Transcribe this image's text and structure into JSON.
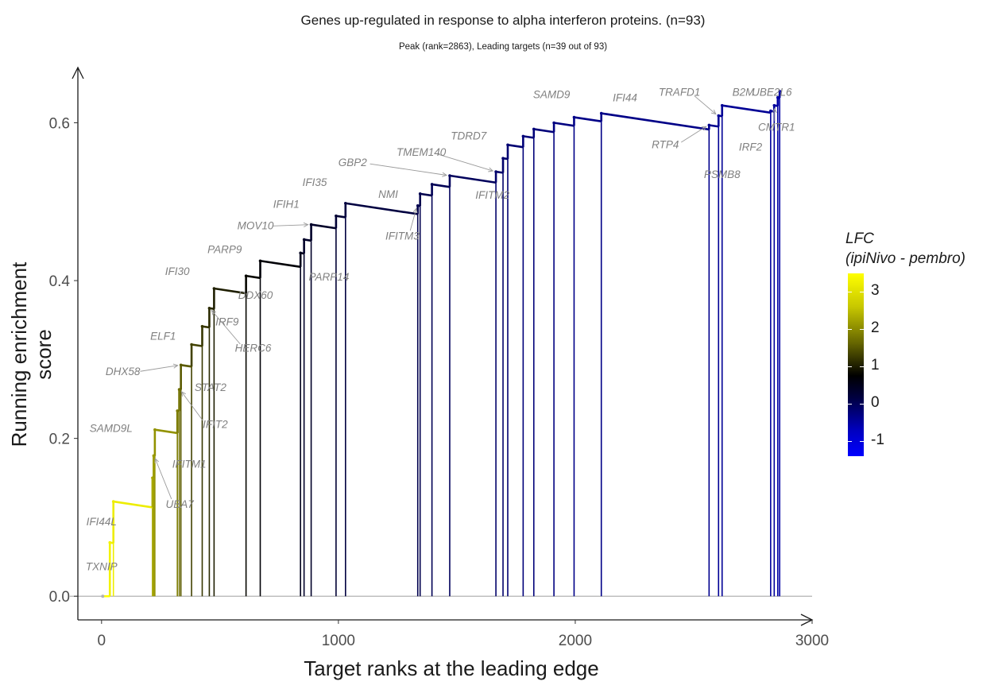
{
  "chart_data": {
    "type": "line",
    "title": "Genes up-regulated in response to alpha interferon proteins. (n=93)",
    "subtitle": "Peak (rank=2863), Leading targets (n=39 out of 93)",
    "xlabel": "Target ranks at the leading edge",
    "ylabel": "Running enrichment score",
    "xlim": [
      -100,
      3000
    ],
    "ylim": [
      -0.03,
      0.67
    ],
    "x_ticks": [
      0,
      1000,
      2000,
      3000
    ],
    "y_ticks": [
      0.0,
      0.2,
      0.4,
      0.6
    ],
    "y_tick_labels": [
      "0.0",
      "0.2",
      "0.4",
      "0.6"
    ],
    "grid": false,
    "legend": {
      "title_line1": "LFC",
      "title_line2": "(ipiNivo - pembro)",
      "placement": "right",
      "ticks": [
        "3",
        "2",
        "1",
        "0",
        "-1"
      ],
      "range": [
        -1.4,
        3.5
      ]
    },
    "steps": [
      {
        "gene": "TXNIP",
        "rank": 5,
        "es": 0.0
      },
      {
        "gene": "",
        "rank": 35,
        "es": 0.068,
        "lfc": 3.3
      },
      {
        "gene": "IFI44L",
        "rank": 50,
        "es": 0.12,
        "lfc": 3.2
      },
      {
        "gene": "",
        "rank": 215,
        "es": 0.15,
        "lfc": 2.3
      },
      {
        "gene": "UBA7",
        "rank": 220,
        "es": 0.178,
        "lfc": 2.2
      },
      {
        "gene": "SAMD9L",
        "rank": 225,
        "es": 0.211,
        "lfc": 2.1
      },
      {
        "gene": "IFITM1",
        "rank": 320,
        "es": 0.235,
        "lfc": 1.9
      },
      {
        "gene": "IFIT2",
        "rank": 328,
        "es": 0.262,
        "lfc": 1.8
      },
      {
        "gene": "DHX58",
        "rank": 335,
        "es": 0.293,
        "lfc": 1.6
      },
      {
        "gene": "ELF1",
        "rank": 380,
        "es": 0.319,
        "lfc": 1.4
      },
      {
        "gene": "STAT2",
        "rank": 425,
        "es": 0.342,
        "lfc": 1.3
      },
      {
        "gene": "HERC6",
        "rank": 455,
        "es": 0.365,
        "lfc": 1.2
      },
      {
        "gene": "IRF9",
        "rank": 475,
        "es": 0.39,
        "lfc": 1.1
      },
      {
        "gene": "PARP9",
        "rank": 610,
        "es": 0.406,
        "lfc": 0.9
      },
      {
        "gene": "DDX60",
        "rank": 670,
        "es": 0.425,
        "lfc": 0.8
      },
      {
        "gene": "",
        "rank": 840,
        "es": 0.435,
        "lfc": 0.6
      },
      {
        "gene": "PARP14",
        "rank": 855,
        "es": 0.452,
        "lfc": 0.5
      },
      {
        "gene": "MOV10",
        "rank": 885,
        "es": 0.471,
        "lfc": 0.5
      },
      {
        "gene": "IFIH1",
        "rank": 990,
        "es": 0.482,
        "lfc": 0.4
      },
      {
        "gene": "IFI35",
        "rank": 1030,
        "es": 0.498,
        "lfc": 0.3
      },
      {
        "gene": "IFITM3",
        "rank": 1335,
        "es": 0.495,
        "lfc": 0.2
      },
      {
        "gene": "NMI",
        "rank": 1345,
        "es": 0.51,
        "lfc": 0.2
      },
      {
        "gene": "",
        "rank": 1395,
        "es": 0.522,
        "lfc": 0.15
      },
      {
        "gene": "GBP2",
        "rank": 1470,
        "es": 0.533,
        "lfc": 0.1
      },
      {
        "gene": "TMEM140",
        "rank": 1665,
        "es": 0.538,
        "lfc": 0.0
      },
      {
        "gene": "IFITM2",
        "rank": 1695,
        "es": 0.555,
        "lfc": 0.0
      },
      {
        "gene": "TDRD7",
        "rank": 1715,
        "es": 0.572,
        "lfc": -0.05
      },
      {
        "gene": "",
        "rank": 1780,
        "es": 0.583,
        "lfc": -0.1
      },
      {
        "gene": "",
        "rank": 1825,
        "es": 0.592,
        "lfc": -0.1
      },
      {
        "gene": "SAMD9",
        "rank": 1910,
        "es": 0.6,
        "lfc": -0.15
      },
      {
        "gene": "",
        "rank": 1995,
        "es": 0.607,
        "lfc": -0.2
      },
      {
        "gene": "IFI44",
        "rank": 2110,
        "es": 0.612,
        "lfc": -0.2
      },
      {
        "gene": "RTP4",
        "rank": 2565,
        "es": 0.597,
        "lfc": -0.25
      },
      {
        "gene": "TRAFD1",
        "rank": 2605,
        "es": 0.609,
        "lfc": -0.3
      },
      {
        "gene": "PSMB8",
        "rank": 2620,
        "es": 0.622,
        "lfc": -0.3
      },
      {
        "gene": "IRF2",
        "rank": 2825,
        "es": 0.615,
        "lfc": -0.35
      },
      {
        "gene": "CMTR1",
        "rank": 2840,
        "es": 0.622,
        "lfc": -0.35
      },
      {
        "gene": "B2M",
        "rank": 2855,
        "es": 0.632,
        "lfc": -0.4
      },
      {
        "gene": "UBE2L6",
        "rank": 2863,
        "es": 0.64,
        "lfc": -0.4
      }
    ],
    "gene_labels": [
      {
        "text": "TXNIP",
        "x": 0,
        "y": 0.033,
        "pointer": false
      },
      {
        "text": "IFI44L",
        "x": 0,
        "y": 0.09,
        "pointer": false
      },
      {
        "text": "SAMD9L",
        "x": 40,
        "y": 0.208,
        "pointer": false
      },
      {
        "text": "UBA7",
        "x": 330,
        "y": 0.112,
        "pointer": true
      },
      {
        "text": "IFITM1",
        "x": 370,
        "y": 0.163,
        "pointer": false
      },
      {
        "text": "IFIT2",
        "x": 480,
        "y": 0.213,
        "pointer": true
      },
      {
        "text": "DHX58",
        "x": 90,
        "y": 0.28,
        "pointer": true
      },
      {
        "text": "STAT2",
        "x": 460,
        "y": 0.26,
        "pointer": false
      },
      {
        "text": "ELF1",
        "x": 260,
        "y": 0.325,
        "pointer": false
      },
      {
        "text": "HERC6",
        "x": 640,
        "y": 0.31,
        "pointer": true
      },
      {
        "text": "IRF9",
        "x": 530,
        "y": 0.343,
        "pointer": false
      },
      {
        "text": "IFI30",
        "x": 320,
        "y": 0.407,
        "pointer": true
      },
      {
        "text": "DDX60",
        "x": 650,
        "y": 0.377,
        "pointer": false
      },
      {
        "text": "PARP9",
        "x": 520,
        "y": 0.435,
        "pointer": false
      },
      {
        "text": "PARP14",
        "x": 960,
        "y": 0.4,
        "pointer": false
      },
      {
        "text": "MOV10",
        "x": 650,
        "y": 0.465,
        "pointer": true
      },
      {
        "text": "IFIH1",
        "x": 780,
        "y": 0.492,
        "pointer": false
      },
      {
        "text": "IFI35",
        "x": 900,
        "y": 0.52,
        "pointer": false
      },
      {
        "text": "GBP2",
        "x": 1060,
        "y": 0.545,
        "pointer": true
      },
      {
        "text": "NMI",
        "x": 1210,
        "y": 0.505,
        "pointer": false
      },
      {
        "text": "IFITM3",
        "x": 1270,
        "y": 0.452,
        "pointer": true
      },
      {
        "text": "TMEM140",
        "x": 1350,
        "y": 0.558,
        "pointer": true
      },
      {
        "text": "TDRD7",
        "x": 1550,
        "y": 0.579,
        "pointer": false
      },
      {
        "text": "IFITM2",
        "x": 1650,
        "y": 0.504,
        "pointer": false
      },
      {
        "text": "SAMD9",
        "x": 1900,
        "y": 0.631,
        "pointer": false
      },
      {
        "text": "IFI44",
        "x": 2210,
        "y": 0.627,
        "pointer": false
      },
      {
        "text": "TRAFD1",
        "x": 2440,
        "y": 0.634,
        "pointer": true
      },
      {
        "text": "B2M",
        "x": 2710,
        "y": 0.634,
        "pointer": false
      },
      {
        "text": "UBE2L6",
        "x": 2830,
        "y": 0.634,
        "pointer": false
      },
      {
        "text": "RTP4",
        "x": 2380,
        "y": 0.568,
        "pointer": true
      },
      {
        "text": "CMTR1",
        "x": 2850,
        "y": 0.59,
        "pointer": true
      },
      {
        "text": "IRF2",
        "x": 2740,
        "y": 0.565,
        "pointer": false
      },
      {
        "text": "PSMB8",
        "x": 2620,
        "y": 0.53,
        "pointer": false
      }
    ]
  }
}
